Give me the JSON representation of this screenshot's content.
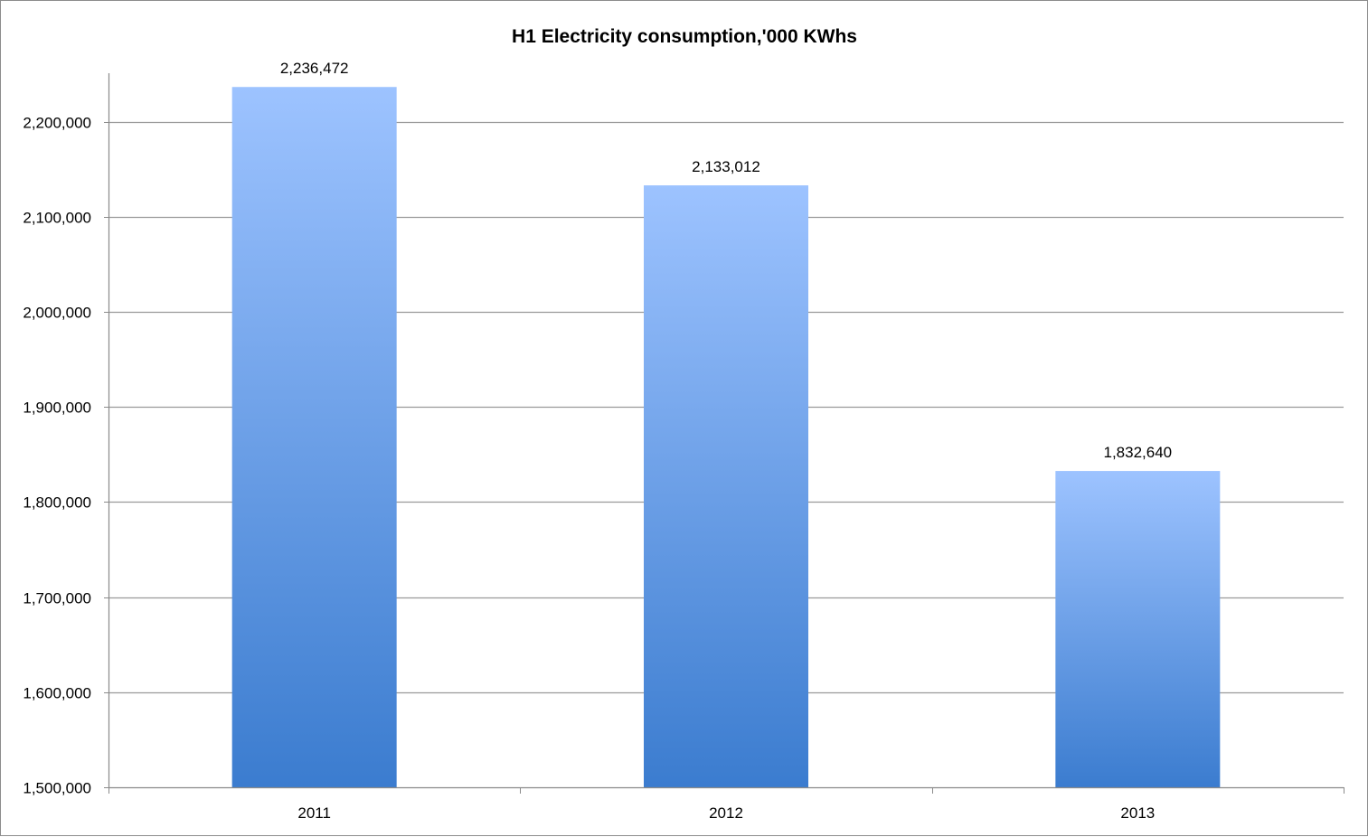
{
  "chart_data": {
    "type": "bar",
    "title": "H1 Electricity consumption,'000 KWhs",
    "xlabel": "",
    "ylabel": "",
    "categories": [
      "2011",
      "2012",
      "2013"
    ],
    "values": [
      2236472,
      2133012,
      1832640
    ],
    "value_labels": [
      "2,236,472",
      "2,133,012",
      "1,832,640"
    ],
    "ylim": [
      1500000,
      2250000
    ],
    "yticks": [
      1500000,
      1600000,
      1700000,
      1800000,
      1900000,
      2000000,
      2100000,
      2200000
    ],
    "ytick_labels": [
      "1,500,000",
      "1,600,000",
      "1,700,000",
      "1,800,000",
      "1,900,000",
      "2,000,000",
      "2,100,000",
      "2,200,000"
    ],
    "grid": true,
    "legend": "none",
    "bar_color_top": "#9dc3ff",
    "bar_color_bottom": "#3b7ccf",
    "grid_color": "#9a9a9a",
    "axis_color": "#8a8a8a"
  }
}
